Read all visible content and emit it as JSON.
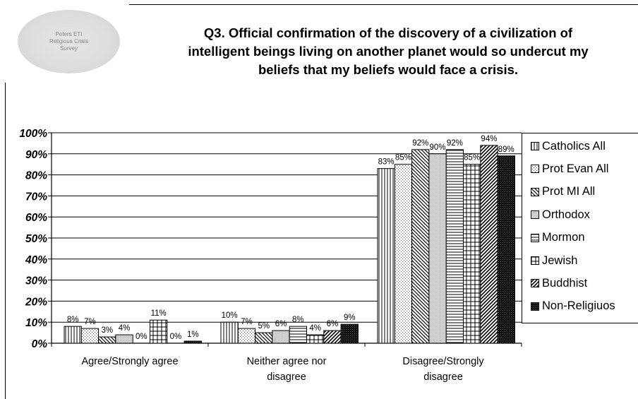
{
  "logo": {
    "lines": [
      "Peters ETI",
      "Religious Crisis",
      "Survey"
    ]
  },
  "title_lines": [
    "Q3. Official confirmation of the discovery of a civilization of",
    "intelligent beings living on another planet would so undercut my",
    "beliefs that my beliefs would face a crisis."
  ],
  "chart_data": {
    "type": "bar",
    "title": "Q3. Official confirmation of the discovery of a civilization of intelligent beings living on another planet would so undercut my beliefs that my beliefs would face a crisis.",
    "xlabel": "",
    "ylabel": "",
    "ylim": [
      0,
      100
    ],
    "yticks": [
      "0%",
      "10%",
      "20%",
      "30%",
      "40%",
      "50%",
      "60%",
      "70%",
      "80%",
      "90%",
      "100%"
    ],
    "categories": [
      [
        "Agree/Strongly agree"
      ],
      [
        "Neither agree nor",
        "disagree"
      ],
      [
        "Disagree/Strongly",
        "disagree"
      ]
    ],
    "series": [
      {
        "name": "Catholics All",
        "pattern": "vlines",
        "values": [
          8,
          10,
          83
        ],
        "labels": [
          "8%",
          "10%",
          "83%"
        ]
      },
      {
        "name": "Prot Evan All",
        "pattern": "dots-sparse",
        "values": [
          7,
          7,
          85
        ],
        "labels": [
          "7%",
          "7%",
          "85%"
        ]
      },
      {
        "name": "Prot MI All",
        "pattern": "diag-down",
        "values": [
          3,
          5,
          92
        ],
        "labels": [
          "3%",
          "5%",
          "92%"
        ]
      },
      {
        "name": "Orthodox",
        "pattern": "dots-dense",
        "values": [
          4,
          6,
          90
        ],
        "labels": [
          "4%",
          "6%",
          "90%"
        ]
      },
      {
        "name": "Mormon",
        "pattern": "hlines",
        "values": [
          0,
          8,
          92
        ],
        "labels": [
          "0%",
          "8%",
          "92%"
        ]
      },
      {
        "name": "Jewish",
        "pattern": "grid",
        "values": [
          11,
          4,
          85
        ],
        "labels": [
          "11%",
          "4%",
          "85%"
        ]
      },
      {
        "name": "Buddhist",
        "pattern": "diag-up",
        "values": [
          0,
          6,
          94
        ],
        "labels": [
          "0%",
          "6%",
          "94%"
        ]
      },
      {
        "name": "Non-Religiuos",
        "pattern": "solid-dark",
        "values": [
          1,
          9,
          89
        ],
        "labels": [
          "1%",
          "9%",
          "89%"
        ]
      }
    ],
    "legend_position": "right",
    "grid": true
  }
}
